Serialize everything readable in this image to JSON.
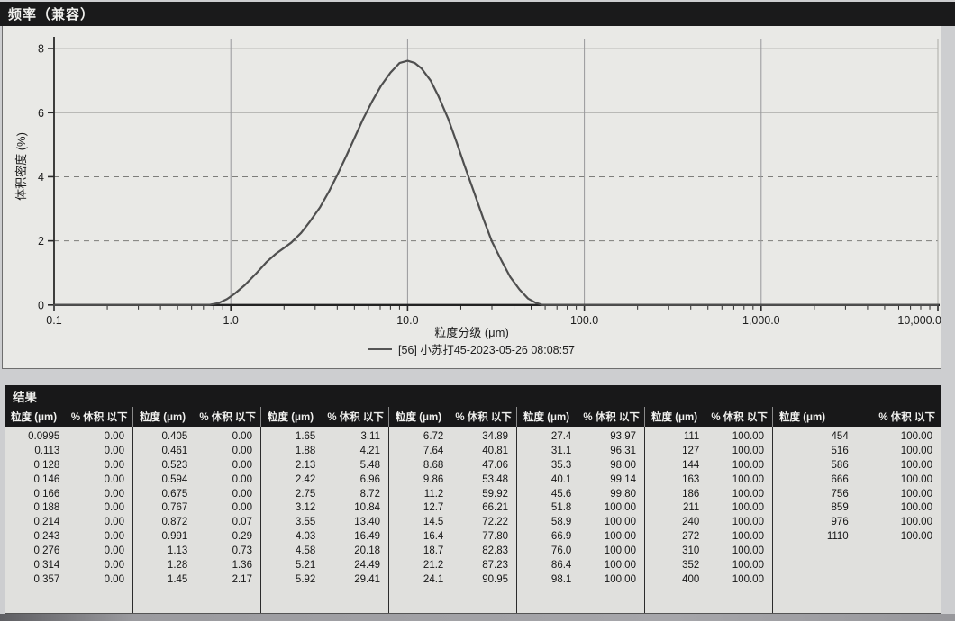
{
  "page": {
    "title": "频率（兼容）"
  },
  "chart_data": {
    "type": "line",
    "title": "频率（兼容）",
    "xlabel": "粒度分级 (μm)",
    "ylabel": "体积密度 (%)",
    "x_scale": "log",
    "xlim": [
      0.1,
      10000
    ],
    "ylim": [
      0,
      8
    ],
    "x_ticks": [
      "0.1",
      "1.0",
      "10.0",
      "100.0",
      "1,000.0",
      "10,000.0"
    ],
    "x_tick_values": [
      0.1,
      1,
      10,
      100,
      1000,
      10000
    ],
    "x_grid_values": [
      1,
      10,
      100,
      1000
    ],
    "y_ticks": [
      0,
      2,
      4,
      6,
      8
    ],
    "grid": true,
    "legend_position": "bottom",
    "series": [
      {
        "name": "[56] 小苏打45-2023-05-26 08:08:57",
        "color": "#4f4f4f",
        "points": [
          [
            0.75,
            0
          ],
          [
            0.85,
            0.06
          ],
          [
            0.95,
            0.18
          ],
          [
            1.05,
            0.35
          ],
          [
            1.2,
            0.62
          ],
          [
            1.4,
            1.0
          ],
          [
            1.6,
            1.35
          ],
          [
            1.8,
            1.6
          ],
          [
            2.0,
            1.78
          ],
          [
            2.2,
            1.95
          ],
          [
            2.5,
            2.25
          ],
          [
            2.8,
            2.6
          ],
          [
            3.2,
            3.05
          ],
          [
            3.6,
            3.55
          ],
          [
            4.0,
            4.05
          ],
          [
            4.5,
            4.65
          ],
          [
            5.0,
            5.2
          ],
          [
            5.6,
            5.8
          ],
          [
            6.3,
            6.35
          ],
          [
            7.1,
            6.85
          ],
          [
            8.0,
            7.25
          ],
          [
            9.0,
            7.55
          ],
          [
            10.0,
            7.62
          ],
          [
            11.0,
            7.55
          ],
          [
            12.0,
            7.38
          ],
          [
            13.5,
            7.0
          ],
          [
            15.0,
            6.5
          ],
          [
            17.0,
            5.8
          ],
          [
            19.0,
            5.05
          ],
          [
            21.0,
            4.35
          ],
          [
            24.0,
            3.45
          ],
          [
            27.0,
            2.65
          ],
          [
            30.0,
            1.98
          ],
          [
            34.0,
            1.38
          ],
          [
            38.0,
            0.88
          ],
          [
            43.0,
            0.48
          ],
          [
            48.0,
            0.2
          ],
          [
            53.0,
            0.07
          ],
          [
            58.0,
            0
          ]
        ]
      }
    ]
  },
  "results": {
    "title": "结果",
    "header": {
      "size": "粒度 (μm)",
      "pct": "% 体积 以下"
    },
    "groups": [
      {
        "rows": [
          [
            "0.0995",
            "0.00"
          ],
          [
            "0.113",
            "0.00"
          ],
          [
            "0.128",
            "0.00"
          ],
          [
            "0.146",
            "0.00"
          ],
          [
            "0.166",
            "0.00"
          ],
          [
            "0.188",
            "0.00"
          ],
          [
            "0.214",
            "0.00"
          ],
          [
            "0.243",
            "0.00"
          ],
          [
            "0.276",
            "0.00"
          ],
          [
            "0.314",
            "0.00"
          ],
          [
            "0.357",
            "0.00"
          ]
        ]
      },
      {
        "rows": [
          [
            "0.405",
            "0.00"
          ],
          [
            "0.461",
            "0.00"
          ],
          [
            "0.523",
            "0.00"
          ],
          [
            "0.594",
            "0.00"
          ],
          [
            "0.675",
            "0.00"
          ],
          [
            "0.767",
            "0.00"
          ],
          [
            "0.872",
            "0.07"
          ],
          [
            "0.991",
            "0.29"
          ],
          [
            "1.13",
            "0.73"
          ],
          [
            "1.28",
            "1.36"
          ],
          [
            "1.45",
            "2.17"
          ]
        ]
      },
      {
        "rows": [
          [
            "1.65",
            "3.11"
          ],
          [
            "1.88",
            "4.21"
          ],
          [
            "2.13",
            "5.48"
          ],
          [
            "2.42",
            "6.96"
          ],
          [
            "2.75",
            "8.72"
          ],
          [
            "3.12",
            "10.84"
          ],
          [
            "3.55",
            "13.40"
          ],
          [
            "4.03",
            "16.49"
          ],
          [
            "4.58",
            "20.18"
          ],
          [
            "5.21",
            "24.49"
          ],
          [
            "5.92",
            "29.41"
          ]
        ]
      },
      {
        "rows": [
          [
            "6.72",
            "34.89"
          ],
          [
            "7.64",
            "40.81"
          ],
          [
            "8.68",
            "47.06"
          ],
          [
            "9.86",
            "53.48"
          ],
          [
            "11.2",
            "59.92"
          ],
          [
            "12.7",
            "66.21"
          ],
          [
            "14.5",
            "72.22"
          ],
          [
            "16.4",
            "77.80"
          ],
          [
            "18.7",
            "82.83"
          ],
          [
            "21.2",
            "87.23"
          ],
          [
            "24.1",
            "90.95"
          ]
        ]
      },
      {
        "rows": [
          [
            "27.4",
            "93.97"
          ],
          [
            "31.1",
            "96.31"
          ],
          [
            "35.3",
            "98.00"
          ],
          [
            "40.1",
            "99.14"
          ],
          [
            "45.6",
            "99.80"
          ],
          [
            "51.8",
            "100.00"
          ],
          [
            "58.9",
            "100.00"
          ],
          [
            "66.9",
            "100.00"
          ],
          [
            "76.0",
            "100.00"
          ],
          [
            "86.4",
            "100.00"
          ],
          [
            "98.1",
            "100.00"
          ]
        ]
      },
      {
        "rows": [
          [
            "111",
            "100.00"
          ],
          [
            "127",
            "100.00"
          ],
          [
            "144",
            "100.00"
          ],
          [
            "163",
            "100.00"
          ],
          [
            "186",
            "100.00"
          ],
          [
            "211",
            "100.00"
          ],
          [
            "240",
            "100.00"
          ],
          [
            "272",
            "100.00"
          ],
          [
            "310",
            "100.00"
          ],
          [
            "352",
            "100.00"
          ],
          [
            "400",
            "100.00"
          ]
        ]
      },
      {
        "rows": [
          [
            "454",
            "100.00"
          ],
          [
            "516",
            "100.00"
          ],
          [
            "586",
            "100.00"
          ],
          [
            "666",
            "100.00"
          ],
          [
            "756",
            "100.00"
          ],
          [
            "859",
            "100.00"
          ],
          [
            "976",
            "100.00"
          ],
          [
            "1110",
            "100.00"
          ]
        ]
      }
    ]
  }
}
